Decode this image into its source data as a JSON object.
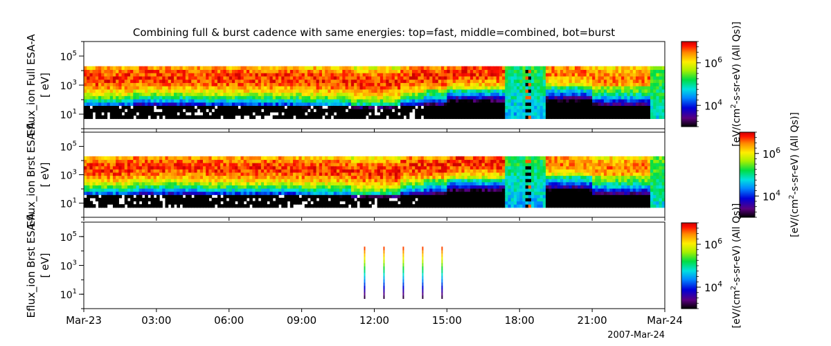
{
  "chart_data": {
    "type": "heatmap",
    "title": "Combining full & burst cadence with same energies: top=fast, middle=combined, bot=burst",
    "x_ticks": [
      "Mar-23",
      "03:00",
      "06:00",
      "09:00",
      "12:00",
      "15:00",
      "18:00",
      "21:00",
      "Mar-24"
    ],
    "x_range": [
      "2007-03-23 00:00",
      "2007-03-24 00:00"
    ],
    "x_date_label": "2007-Mar-24",
    "y_scale": "log",
    "y_range_eV": [
      1,
      1000000
    ],
    "y_ticks": [
      {
        "base": "10",
        "exp": "1"
      },
      {
        "base": "10",
        "exp": "3"
      },
      {
        "base": "10",
        "exp": "5"
      }
    ],
    "z_scale": "log",
    "z_ticks": [
      {
        "base": "10",
        "exp": "4"
      },
      {
        "base": "10",
        "exp": "6"
      }
    ],
    "colormap": "spectral (black-purple-blue-cyan-green-yellow-orange-red)",
    "panels": [
      {
        "name": "full",
        "ylabel_line1": "Eflux_ion Full ESA-A",
        "ylabel_line2": "[ eV]",
        "zlabel_pre": "[eV/(cm",
        "zlabel_sup": "2",
        "zlabel_post": "-s-sr-eV) (All Qs)]",
        "data_extent_hours": [
          0,
          24
        ]
      },
      {
        "name": "combined",
        "ylabel_line1": "Eflux_ion Brst ESA-A",
        "ylabel_line2": "[ eV]",
        "zlabel_pre": "[eV/(cm",
        "zlabel_sup": "2",
        "zlabel_post": "-s-sr-eV) (All Qs)]",
        "data_extent_hours": [
          0,
          24
        ]
      },
      {
        "name": "burst",
        "ylabel_line1": "Eflux_ion Brst ESA-A",
        "ylabel_line2": "[ eV]",
        "zlabel_pre": "[eV/(cm",
        "zlabel_sup": "2",
        "zlabel_post": "-s-sr-eV) (All Qs)]",
        "burst_times_hours": [
          11.6,
          12.4,
          13.2,
          14.0,
          14.8
        ]
      }
    ],
    "energy_range_eV": [
      5,
      20000
    ]
  }
}
